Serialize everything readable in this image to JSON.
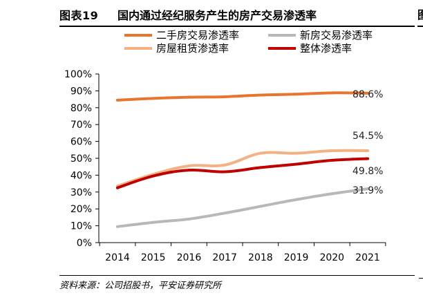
{
  "figure": {
    "label": "图表19",
    "title": "国内通过经纪服务产生的房产交易渗透率",
    "side_fragment": "图",
    "source": "资料来源：公司招股书，平安证券研究所"
  },
  "chart_data": {
    "type": "line",
    "title": "国内通过经纪服务产生的房产交易渗透率",
    "xlabel": "",
    "ylabel": "",
    "categories": [
      "2014",
      "2015",
      "2016",
      "2017",
      "2018",
      "2019",
      "2020",
      "2021"
    ],
    "ylim": [
      0,
      100
    ],
    "yticks": [
      "0%",
      "10%",
      "20%",
      "30%",
      "40%",
      "50%",
      "60%",
      "70%",
      "80%",
      "90%",
      "100%"
    ],
    "grid": false,
    "legend_position": "top",
    "series": [
      {
        "name": "二手房交易渗透率",
        "color": "#E8752E",
        "values": [
          84.5,
          85.5,
          86.2,
          86.5,
          87.5,
          88.0,
          88.8,
          88.6
        ],
        "end_label": "88.6%"
      },
      {
        "name": "新房交易渗透率",
        "color": "#B8B8B8",
        "values": [
          9.5,
          12.0,
          14.0,
          17.5,
          21.5,
          25.5,
          29.0,
          31.9
        ],
        "end_label": "31.9%"
      },
      {
        "name": "房屋租赁渗透率",
        "color": "#F5B183",
        "values": [
          33.5,
          40.5,
          45.5,
          46.0,
          53.0,
          53.0,
          54.5,
          54.5
        ],
        "end_label": "54.5%"
      },
      {
        "name": "整体渗透率",
        "color": "#C00000",
        "values": [
          32.5,
          39.5,
          43.0,
          42.0,
          44.5,
          46.5,
          48.8,
          49.8
        ],
        "end_label": "49.8%"
      }
    ]
  }
}
